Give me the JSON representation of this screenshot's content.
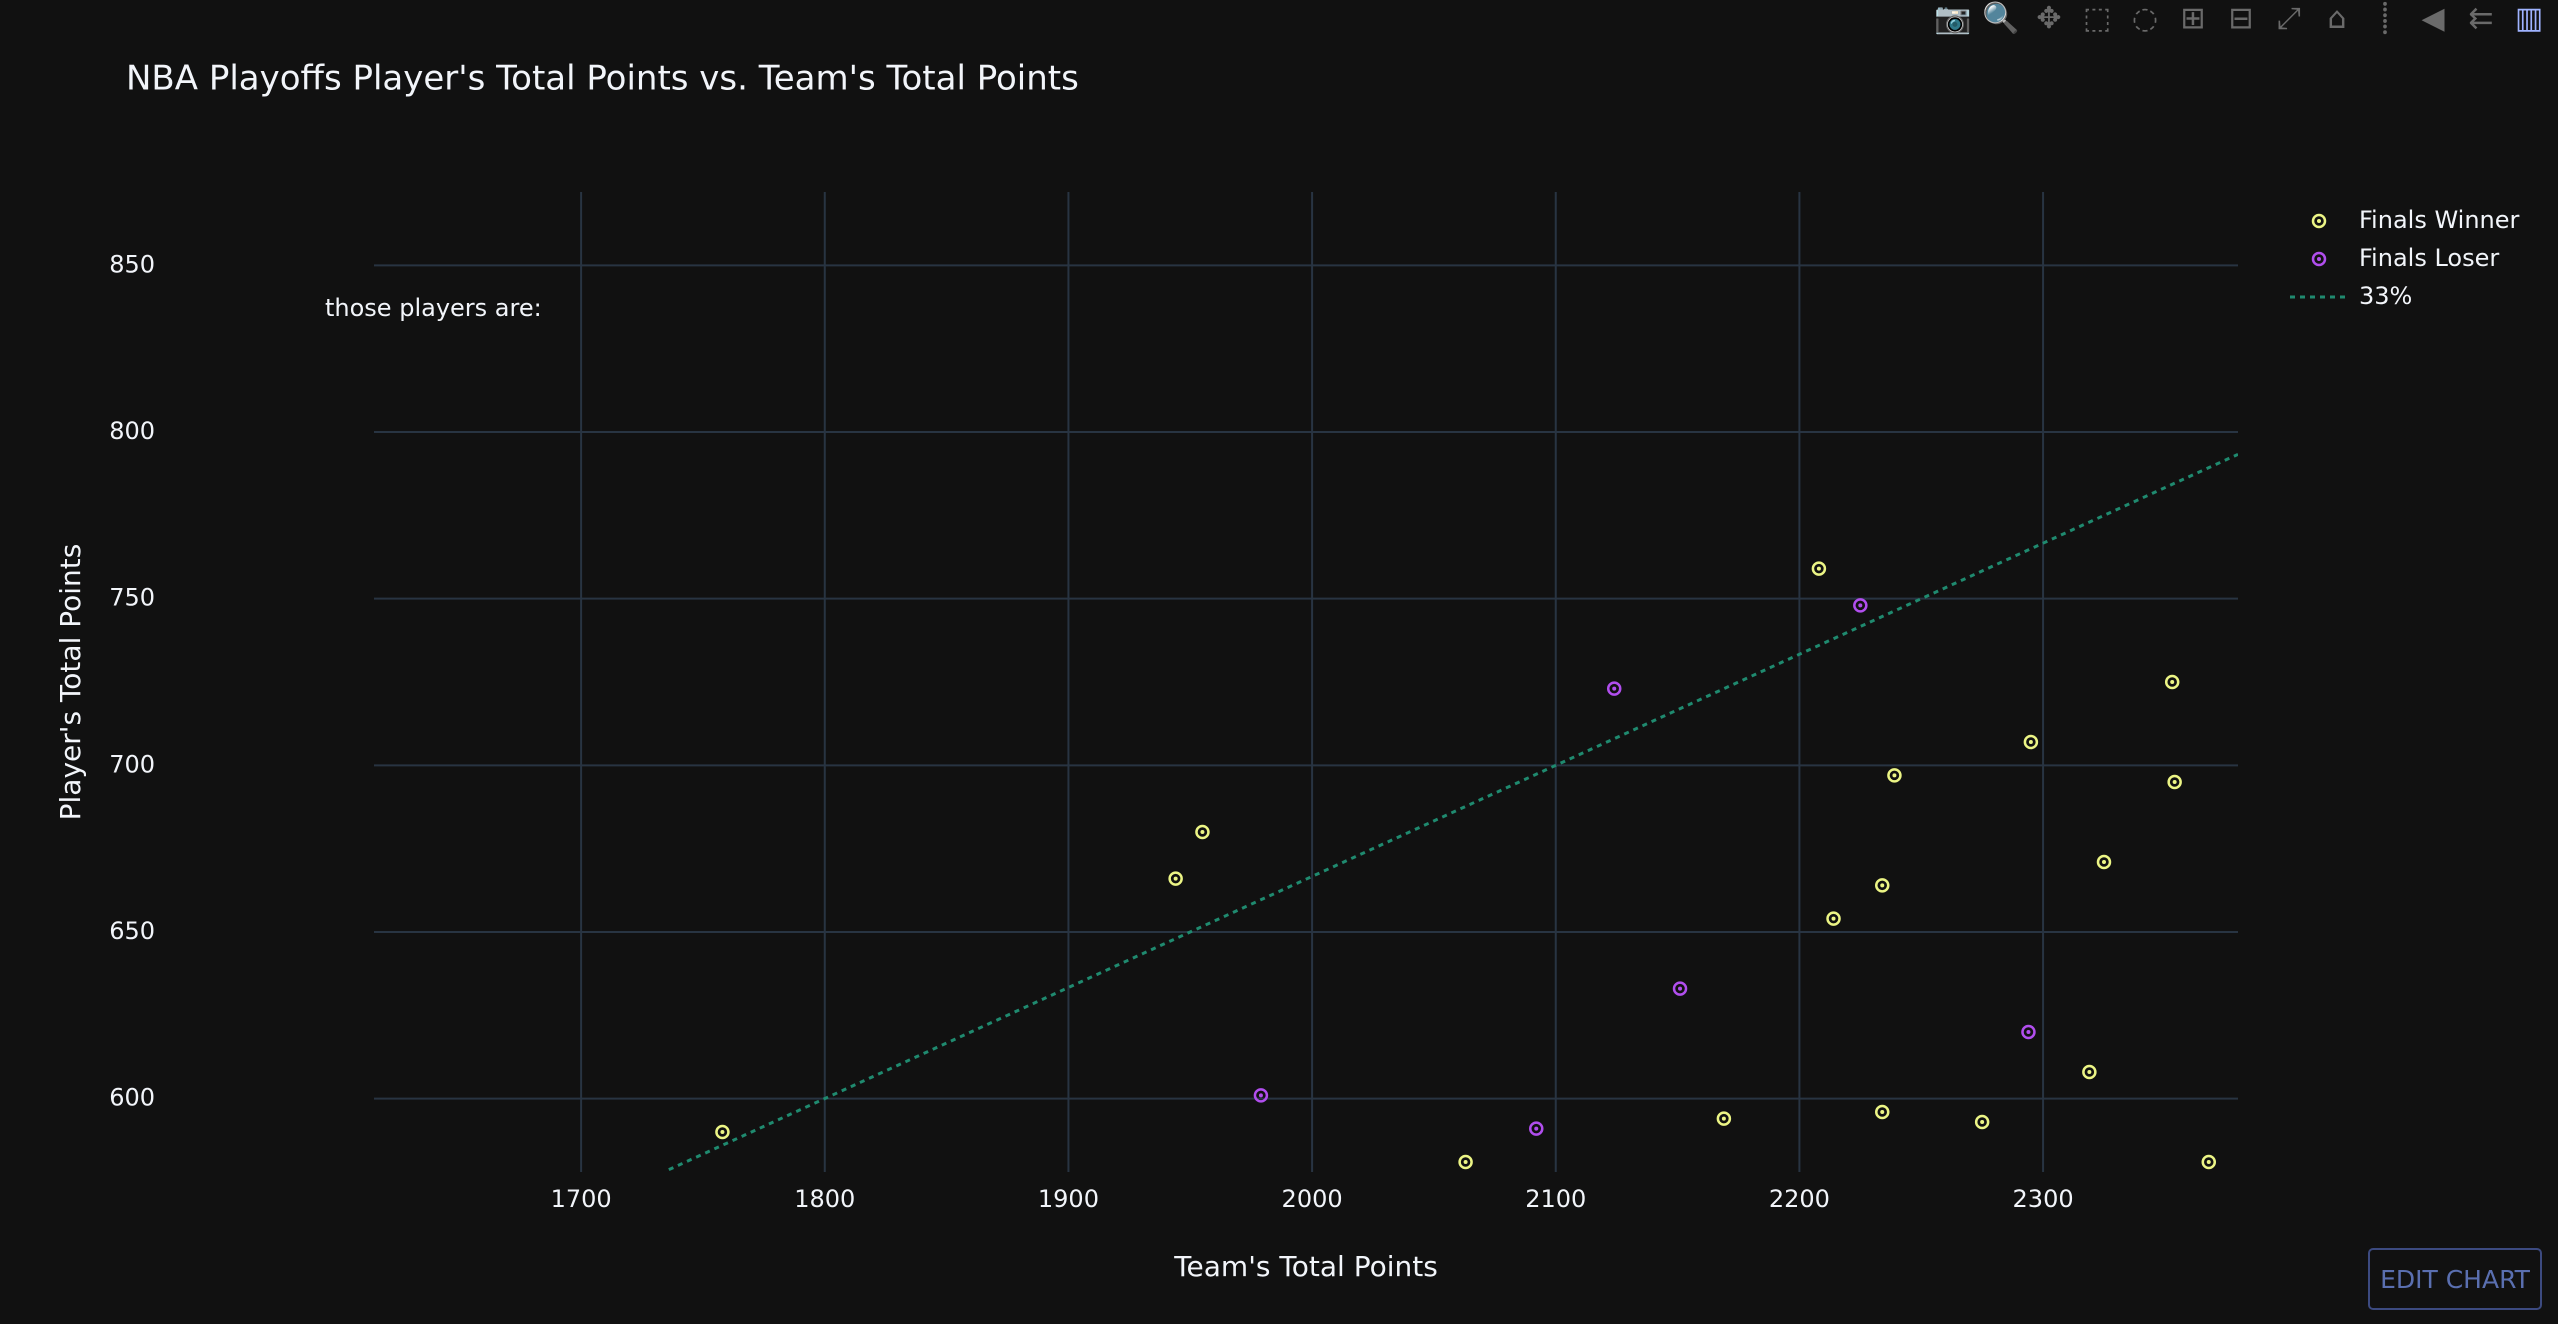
{
  "modebar": {
    "buttons": [
      {
        "name": "camera-icon",
        "glyph": "📷"
      },
      {
        "name": "zoom-icon",
        "glyph": "🔍"
      },
      {
        "name": "pan-icon",
        "glyph": "✥"
      },
      {
        "name": "box-select-icon",
        "glyph": "⬚"
      },
      {
        "name": "lasso-select-icon",
        "glyph": "◌"
      },
      {
        "name": "zoom-in-icon",
        "glyph": "⊞"
      },
      {
        "name": "zoom-out-icon",
        "glyph": "⊟"
      },
      {
        "name": "autoscale-icon",
        "glyph": "⤢"
      },
      {
        "name": "reset-axes-icon",
        "glyph": "⌂"
      },
      {
        "name": "spike-lines-icon",
        "glyph": "⸽"
      },
      {
        "name": "hover-closest-icon",
        "glyph": "◀"
      },
      {
        "name": "hover-compare-icon",
        "glyph": "⇇"
      },
      {
        "name": "plotly-logo-icon",
        "glyph": "▥"
      }
    ]
  },
  "edit_chart_label": "EDIT CHART",
  "colors": {
    "background": "#111111",
    "grid": "#283442",
    "text": "#f2f5fa",
    "winner": "#ecf585",
    "loser": "#b14eee",
    "trend": "#1f8a6f"
  },
  "chart_data": {
    "type": "scatter",
    "title": "NBA Playoffs Player's Total Points vs. Team's Total Points",
    "xlabel": "Team's Total Points",
    "ylabel": "Player's Total Points",
    "annotation": "those players are:",
    "xlim": [
      1615,
      2380
    ],
    "ylim": [
      578,
      872
    ],
    "xticks": [
      1700,
      1800,
      1900,
      2000,
      2100,
      2200,
      2300
    ],
    "yticks": [
      600,
      650,
      700,
      750,
      800,
      850
    ],
    "grid": true,
    "legend_position": "top-right",
    "series": [
      {
        "name": "Finals Winner",
        "mode": "markers",
        "marker": "circle-dot",
        "color": "#ecf585",
        "x": [
          1758,
          1944,
          1955,
          2063,
          2169,
          2208,
          2214,
          2234,
          2234,
          2239,
          2275,
          2295,
          2319,
          2325,
          2353,
          2354,
          2368
        ],
        "y": [
          590,
          666,
          680,
          581,
          594,
          759,
          654,
          596,
          664,
          697,
          593,
          707,
          608,
          671,
          725,
          695,
          581
        ]
      },
      {
        "name": "Finals Loser",
        "mode": "markers",
        "marker": "circle-dot",
        "color": "#b14eee",
        "x": [
          1979,
          2092,
          2124,
          2151,
          2225,
          2294
        ],
        "y": [
          601,
          591,
          723,
          633,
          748,
          620
        ]
      },
      {
        "name": "33%",
        "mode": "line",
        "dash": "dot",
        "color": "#1f8a6f",
        "x": [
          1736,
          2380
        ],
        "y": [
          578.7,
          793.3
        ]
      }
    ]
  }
}
